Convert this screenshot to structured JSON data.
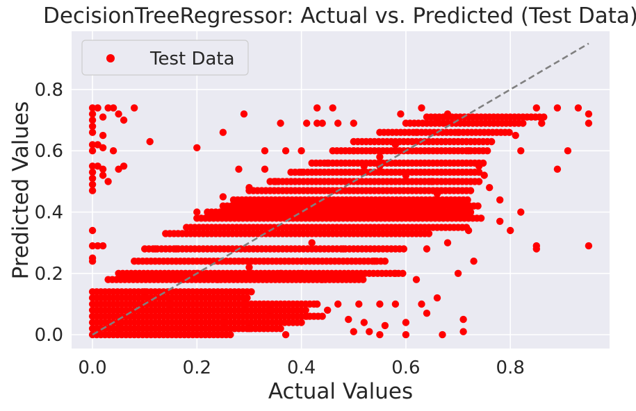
{
  "chart_data": {
    "type": "scatter",
    "title": "DecisionTreeRegressor: Actual vs. Predicted (Test Data)",
    "xlabel": "Actual Values",
    "ylabel": "Predicted Values",
    "xlim": [
      -0.04,
      0.99
    ],
    "ylim": [
      -0.045,
      0.99
    ],
    "xticks": [
      0.0,
      0.2,
      0.4,
      0.6,
      0.8
    ],
    "xtick_labels": [
      "0.0",
      "0.2",
      "0.4",
      "0.6",
      "0.8"
    ],
    "yticks": [
      0.0,
      0.2,
      0.4,
      0.6,
      0.8
    ],
    "ytick_labels": [
      "0.0",
      "0.2",
      "0.4",
      "0.6",
      "0.8"
    ],
    "grid": true,
    "legend_position": "top-left",
    "reference_line": {
      "style": "dashed",
      "color": "#808080",
      "x": [
        0.0,
        0.95
      ],
      "y": [
        0.0,
        0.95
      ]
    },
    "series": [
      {
        "name": "Test Data",
        "color": "#ff0000",
        "points": [
          [
            0.0,
            0.74
          ],
          [
            0.0,
            0.72
          ],
          [
            0.0,
            0.7
          ],
          [
            0.0,
            0.68
          ],
          [
            0.01,
            0.74
          ],
          [
            0.02,
            0.71
          ],
          [
            0.03,
            0.74
          ],
          [
            0.04,
            0.74
          ],
          [
            0.05,
            0.72
          ],
          [
            0.06,
            0.7
          ],
          [
            0.08,
            0.74
          ],
          [
            0.0,
            0.62
          ],
          [
            0.0,
            0.6
          ],
          [
            0.01,
            0.62
          ],
          [
            0.02,
            0.65
          ],
          [
            0.02,
            0.61
          ],
          [
            0.0,
            0.66
          ],
          [
            0.0,
            0.55
          ],
          [
            0.0,
            0.53
          ],
          [
            0.0,
            0.51
          ],
          [
            0.01,
            0.55
          ],
          [
            0.02,
            0.54
          ],
          [
            0.02,
            0.52
          ],
          [
            0.03,
            0.5
          ],
          [
            0.0,
            0.49
          ],
          [
            0.0,
            0.47
          ],
          [
            0.05,
            0.54
          ],
          [
            0.06,
            0.55
          ],
          [
            0.04,
            0.6
          ],
          [
            0.11,
            0.63
          ],
          [
            0.0,
            0.34
          ],
          [
            0.0,
            0.29
          ],
          [
            0.01,
            0.29
          ],
          [
            0.02,
            0.29
          ],
          [
            0.0,
            0.25
          ],
          [
            0.0,
            0.24
          ],
          [
            0.29,
            0.72
          ],
          [
            0.2,
            0.61
          ],
          [
            0.25,
            0.66
          ],
          [
            0.28,
            0.54
          ],
          [
            0.33,
            0.54
          ],
          [
            0.33,
            0.6
          ],
          [
            0.37,
            0.6
          ],
          [
            0.36,
            0.69
          ],
          [
            0.4,
            0.6
          ],
          [
            0.41,
            0.69
          ],
          [
            0.43,
            0.74
          ],
          [
            0.46,
            0.74
          ],
          [
            0.47,
            0.69
          ],
          [
            0.5,
            0.69
          ],
          [
            0.43,
            0.69
          ],
          [
            0.44,
            0.69
          ],
          [
            0.59,
            0.72
          ],
          [
            0.63,
            0.74
          ],
          [
            0.85,
            0.74
          ],
          [
            0.89,
            0.74
          ],
          [
            0.93,
            0.74
          ],
          [
            0.95,
            0.72
          ],
          [
            0.95,
            0.69
          ],
          [
            0.91,
            0.6
          ],
          [
            0.89,
            0.54
          ],
          [
            0.95,
            0.29
          ],
          [
            0.85,
            0.28
          ],
          [
            0.85,
            0.29
          ],
          [
            0.8,
            0.34
          ],
          [
            0.78,
            0.37
          ],
          [
            0.82,
            0.4
          ],
          [
            0.78,
            0.44
          ],
          [
            0.76,
            0.48
          ],
          [
            0.75,
            0.52
          ],
          [
            0.82,
            0.6
          ],
          [
            0.81,
            0.65
          ],
          [
            0.86,
            0.69
          ],
          [
            0.37,
            0.0
          ],
          [
            0.5,
            0.01
          ],
          [
            0.53,
            0.01
          ],
          [
            0.55,
            0.0
          ],
          [
            0.6,
            0.0
          ],
          [
            0.67,
            0.0
          ],
          [
            0.71,
            0.01
          ],
          [
            0.71,
            0.05
          ],
          [
            0.63,
            0.1
          ],
          [
            0.58,
            0.1
          ],
          [
            0.55,
            0.1
          ],
          [
            0.51,
            0.1
          ],
          [
            0.47,
            0.1
          ],
          [
            0.43,
            0.1
          ],
          [
            0.29,
            0.1
          ],
          [
            0.34,
            0.08
          ],
          [
            0.41,
            0.06
          ],
          [
            0.45,
            0.08
          ],
          [
            0.49,
            0.05
          ],
          [
            0.52,
            0.04
          ],
          [
            0.56,
            0.03
          ],
          [
            0.6,
            0.04
          ],
          [
            0.64,
            0.07
          ],
          [
            0.66,
            0.12
          ],
          [
            0.7,
            0.2
          ],
          [
            0.73,
            0.24
          ],
          [
            0.52,
            0.55
          ],
          [
            0.55,
            0.55
          ],
          [
            0.58,
            0.62
          ],
          [
            0.62,
            0.66
          ],
          [
            0.66,
            0.7
          ],
          [
            0.68,
            0.72
          ],
          [
            0.7,
            0.66
          ],
          [
            0.72,
            0.6
          ],
          [
            0.74,
            0.55
          ],
          [
            0.66,
            0.46
          ],
          [
            0.7,
            0.4
          ],
          [
            0.72,
            0.34
          ],
          [
            0.68,
            0.3
          ],
          [
            0.64,
            0.28
          ],
          [
            0.2,
            0.4
          ],
          [
            0.25,
            0.45
          ],
          [
            0.3,
            0.48
          ],
          [
            0.35,
            0.5
          ],
          [
            0.4,
            0.53
          ],
          [
            0.45,
            0.56
          ],
          [
            0.5,
            0.6
          ],
          [
            0.55,
            0.58
          ],
          [
            0.6,
            0.52
          ],
          [
            0.65,
            0.5
          ],
          [
            0.42,
            0.3
          ],
          [
            0.48,
            0.28
          ],
          [
            0.54,
            0.24
          ],
          [
            0.58,
            0.2
          ],
          [
            0.62,
            0.18
          ],
          [
            0.12,
            0.28
          ],
          [
            0.16,
            0.28
          ],
          [
            0.2,
            0.2
          ],
          [
            0.24,
            0.18
          ],
          [
            0.3,
            0.22
          ],
          [
            0.36,
            0.2
          ],
          [
            0.4,
            0.2
          ],
          [
            0.44,
            0.18
          ],
          [
            0.1,
            0.14
          ],
          [
            0.15,
            0.1
          ],
          [
            0.2,
            0.06
          ],
          [
            0.25,
            0.04
          ],
          [
            0.3,
            0.02
          ],
          [
            0.05,
            0.02
          ],
          [
            0.08,
            0.06
          ]
        ]
      }
    ],
    "clusters": [
      {
        "x0": 0.0,
        "x1": 0.27,
        "y": 0.0
      },
      {
        "x0": 0.0,
        "x1": 0.36,
        "y": 0.02
      },
      {
        "x0": 0.0,
        "x1": 0.4,
        "y": 0.04
      },
      {
        "x0": 0.0,
        "x1": 0.44,
        "y": 0.06
      },
      {
        "x0": 0.0,
        "x1": 0.41,
        "y": 0.08
      },
      {
        "x0": 0.0,
        "x1": 0.43,
        "y": 0.1
      },
      {
        "x0": 0.0,
        "x1": 0.3,
        "y": 0.12
      },
      {
        "x0": 0.0,
        "x1": 0.31,
        "y": 0.14
      },
      {
        "x0": 0.03,
        "x1": 0.52,
        "y": 0.18
      },
      {
        "x0": 0.05,
        "x1": 0.6,
        "y": 0.2
      },
      {
        "x0": 0.08,
        "x1": 0.56,
        "y": 0.24
      },
      {
        "x0": 0.1,
        "x1": 0.6,
        "y": 0.28
      },
      {
        "x0": 0.14,
        "x1": 0.65,
        "y": 0.33
      },
      {
        "x0": 0.18,
        "x1": 0.72,
        "y": 0.35
      },
      {
        "x0": 0.2,
        "x1": 0.75,
        "y": 0.38
      },
      {
        "x0": 0.22,
        "x1": 0.73,
        "y": 0.4
      },
      {
        "x0": 0.25,
        "x1": 0.74,
        "y": 0.42
      },
      {
        "x0": 0.27,
        "x1": 0.72,
        "y": 0.44
      },
      {
        "x0": 0.3,
        "x1": 0.73,
        "y": 0.47
      },
      {
        "x0": 0.34,
        "x1": 0.74,
        "y": 0.5
      },
      {
        "x0": 0.38,
        "x1": 0.74,
        "y": 0.53
      },
      {
        "x0": 0.42,
        "x1": 0.75,
        "y": 0.56
      },
      {
        "x0": 0.46,
        "x1": 0.76,
        "y": 0.6
      },
      {
        "x0": 0.5,
        "x1": 0.77,
        "y": 0.63
      },
      {
        "x0": 0.55,
        "x1": 0.8,
        "y": 0.66
      },
      {
        "x0": 0.6,
        "x1": 0.83,
        "y": 0.69
      },
      {
        "x0": 0.64,
        "x1": 0.87,
        "y": 0.71
      }
    ]
  }
}
